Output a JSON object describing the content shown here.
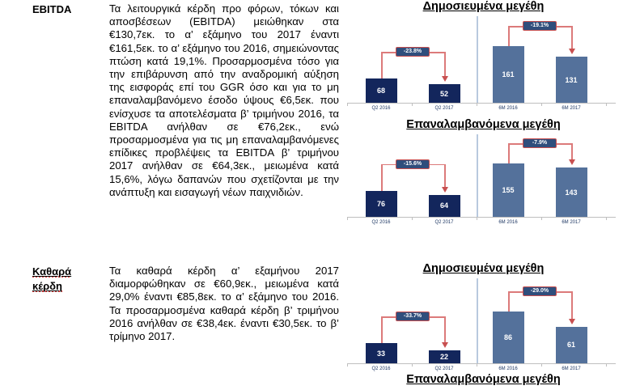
{
  "document": {
    "sections": [
      {
        "label": "EBITDA",
        "body": "Τα λειτουργικά κέρδη προ φόρων, τόκων και αποσβέσεων (EBITDA) μειώθηκαν στα €130,7εκ. το α’ εξάμηνο του 2017 έναντι €161,5εκ. το α’ εξάμηνο του 2016, σημειώνοντας πτώση κατά 19,1%. Προσαρμοσμένα τόσο για την επιβάρυνση από την αναδρομική αύξηση της εισφοράς επί του GGR όσο και για το μη επαναλαμβανόμενο έσοδο ύψους €6,5εκ. που ενίσχυσε τα αποτελέσματα β’ τριμήνου 2016, τα EBITDA ανήλθαν σε €76,2εκ., ενώ προσαρμοσμένα για τις μη επαναλαμβανόμενες επίδικες προβλέψεις τα EBITDA β’ τριμήνου 2017 ανήλθαν σε €64,3εκ., μειωμένα κατά 15,6%, λόγω δαπανών που σχετίζονται με την ανάπτυξη και εισαγωγή νέων παιχνιδιών."
      },
      {
        "label": "Καθαρά κέρδη",
        "body": "Τα καθαρά κέρδη α’ εξαμήνου 2017 διαμορφώθηκαν σε €60,9εκ., μειωμένα κατά 29,0% έναντι €85,8εκ. το α’ εξάμηνο του 2016. Τα προσαρμοσμένα καθαρά κέρδη β’ τριμήνου 2016 ανήλθαν σε €38,4εκ. έναντι €30,5εκ. το β’ τρίμηνο 2017."
      }
    ]
  },
  "colors": {
    "bar_navy": "#13265C",
    "bar_steel": "#54719B",
    "bar_value_text": "#FFFFFF",
    "connector_line": "#DC7A7A",
    "connector_box_fill": "#2F4E7C",
    "connector_box_border": "#C85050",
    "divider": "#B8C9DE",
    "axis": "#BFBFBF",
    "category_label": "#1F3864"
  },
  "chart_data": [
    {
      "type": "bar",
      "title": "Δημοσιευμένα μεγέθη",
      "categories": [
        "Q2 2016",
        "Q2 2017",
        "6M 2016",
        "6M 2017"
      ],
      "values": [
        68,
        52,
        161,
        131
      ],
      "bar_colors": [
        "bar_navy",
        "bar_navy",
        "bar_steel",
        "bar_steel"
      ],
      "annotations": [
        {
          "from": 0,
          "to": 1,
          "label": "-23.8%"
        },
        {
          "from": 2,
          "to": 3,
          "label": "-19.1%"
        }
      ],
      "ylim": [
        0,
        170
      ],
      "grid": false,
      "value_labels": "inside-white",
      "legend": "none"
    },
    {
      "type": "bar",
      "title": "Επαναλαμβανόμενα μεγέθη",
      "categories": [
        "Q2 2016",
        "Q2 2017",
        "6M 2016",
        "6M 2017"
      ],
      "values": [
        76,
        64,
        155,
        143
      ],
      "bar_colors": [
        "bar_navy",
        "bar_navy",
        "bar_steel",
        "bar_steel"
      ],
      "annotations": [
        {
          "from": 0,
          "to": 1,
          "label": "-15.6%"
        },
        {
          "from": 2,
          "to": 3,
          "label": "-7.9%"
        }
      ],
      "ylim": [
        0,
        165
      ],
      "grid": false,
      "value_labels": "inside-white",
      "legend": "none"
    },
    {
      "type": "bar",
      "title": "Δημοσιευμένα μεγέθη",
      "categories": [
        "Q2 2016",
        "Q2 2017",
        "6M 2016",
        "6M 2017"
      ],
      "values": [
        33,
        22,
        86,
        61
      ],
      "bar_colors": [
        "bar_navy",
        "bar_navy",
        "bar_steel",
        "bar_steel"
      ],
      "annotations": [
        {
          "from": 0,
          "to": 1,
          "label": "-33.7%"
        },
        {
          "from": 2,
          "to": 3,
          "label": "-29.0%"
        }
      ],
      "ylim": [
        0,
        95
      ],
      "grid": false,
      "value_labels": "inside-white",
      "legend": "none"
    },
    {
      "type": "bar",
      "title": "Επαναλαμβανόμενα μεγέθη"
    }
  ]
}
